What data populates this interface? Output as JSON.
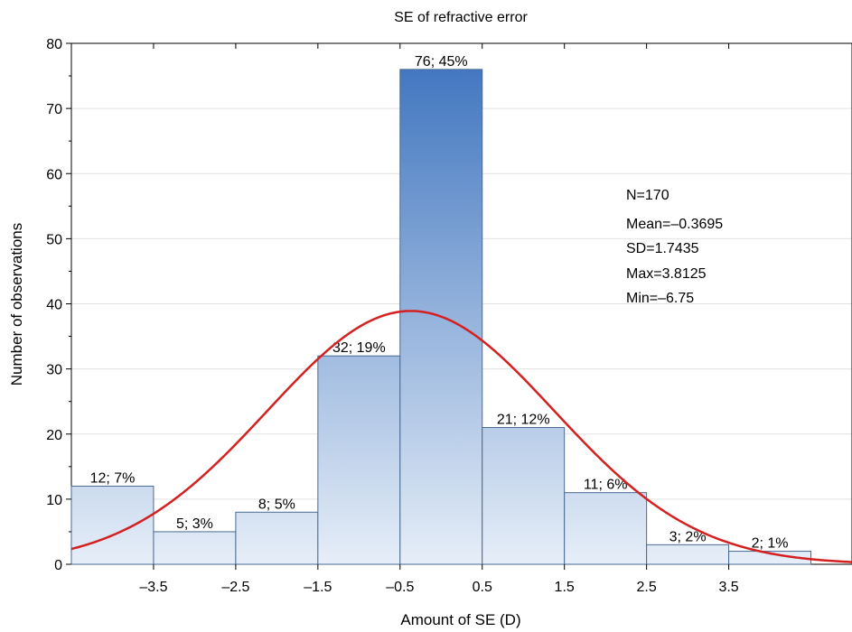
{
  "chart_data": {
    "type": "bar",
    "title": "SE of refractive error",
    "xlabel": "Amount of SE (D)",
    "ylabel": "Number of observations",
    "xlim": [
      -4.5,
      5.0
    ],
    "ylim": [
      0,
      80
    ],
    "yticks": [
      0,
      10,
      20,
      30,
      40,
      50,
      60,
      70,
      80
    ],
    "xticks": [
      -3.5,
      -2.5,
      -1.5,
      -0.5,
      0.5,
      1.5,
      2.5,
      3.5
    ],
    "xtick_labels": [
      "–3.5",
      "–2.5",
      "–1.5",
      "–0.5",
      "0.5",
      "1.5",
      "2.5",
      "3.5"
    ],
    "bins": [
      {
        "from": -4.5,
        "to": -3.5,
        "value": 12,
        "label": "12; 7%"
      },
      {
        "from": -3.5,
        "to": -2.5,
        "value": 5,
        "label": "5; 3%"
      },
      {
        "from": -2.5,
        "to": -1.5,
        "value": 8,
        "label": "8; 5%"
      },
      {
        "from": -1.5,
        "to": -0.5,
        "value": 32,
        "label": "32; 19%"
      },
      {
        "from": -0.5,
        "to": 0.5,
        "value": 76,
        "label": "76; 45%"
      },
      {
        "from": 0.5,
        "to": 1.5,
        "value": 21,
        "label": "21; 12%"
      },
      {
        "from": 1.5,
        "to": 2.5,
        "value": 11,
        "label": "11; 6%"
      },
      {
        "from": 2.5,
        "to": 3.5,
        "value": 3,
        "label": "3; 2%"
      },
      {
        "from": 3.5,
        "to": 4.5,
        "value": 2,
        "label": "2; 1%"
      }
    ],
    "normal_curve": {
      "mean": -0.3695,
      "sd": 1.7435,
      "n": 170,
      "bin_width": 1,
      "color": "#d42020"
    },
    "stats": [
      "N=170",
      "Mean=–0.3695",
      "SD=1.7435",
      "Max=3.8125",
      "Min=–6.75"
    ],
    "colors": {
      "bar_top": "#3a71bd",
      "bar_bottom": "#e6eef8",
      "bar_edge": "#4a6a92",
      "curve": "#d42020"
    },
    "grid": true,
    "legend": "none"
  }
}
